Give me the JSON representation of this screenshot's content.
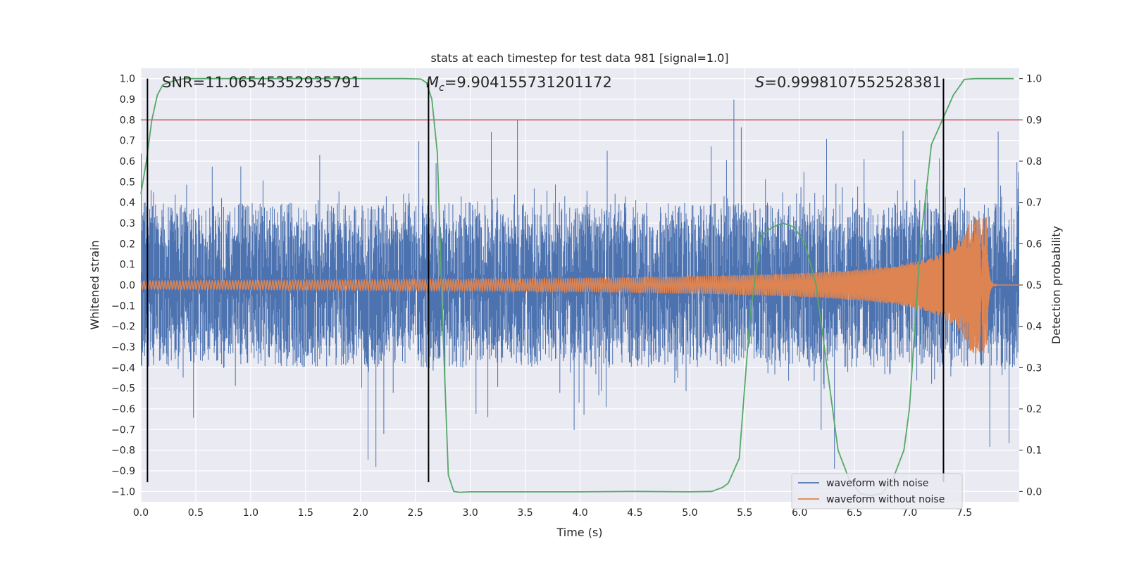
{
  "chart_data": {
    "type": "line",
    "title": "stats at each timestep for test data 981 [signal=1.0]",
    "xlabel": "Time (s)",
    "ylabel_left": "Whitened strain",
    "ylabel_right": "Detection probability",
    "xlim": [
      0,
      8
    ],
    "ylim_left": [
      -1.05,
      1.05
    ],
    "ylim_right": [
      -0.025,
      1.025
    ],
    "x_ticks": [
      "0.0",
      "0.5",
      "1.0",
      "1.5",
      "2.0",
      "2.5",
      "3.0",
      "3.5",
      "4.0",
      "4.5",
      "5.0",
      "5.5",
      "6.0",
      "6.5",
      "7.0",
      "7.5"
    ],
    "y_ticks_left": [
      "1.0",
      "0.9",
      "0.8",
      "0.7",
      "0.6",
      "0.5",
      "0.4",
      "0.3",
      "0.2",
      "0.1",
      "0.0",
      "−0.1",
      "−0.2",
      "−0.3",
      "−0.4",
      "−0.5",
      "−0.6",
      "−0.7",
      "−0.8",
      "−0.9",
      "−1.0"
    ],
    "y_ticks_right": [
      "1.0",
      "0.9",
      "0.8",
      "0.7",
      "0.6",
      "0.5",
      "0.4",
      "0.3",
      "0.2",
      "0.1",
      "0.0"
    ],
    "annotations": {
      "snr": "SNR=11.06545352935791",
      "mc_symbol": "M",
      "mc_sub": "c",
      "mc_value": "=9.904155731201172",
      "s_symbol": "S",
      "s_value": "=0.9998107552528381"
    },
    "threshold": 0.9,
    "vlines_x": [
      0.06,
      2.62,
      7.31
    ],
    "noise_envelope": {
      "typical_peak": 0.5,
      "max_peak": 0.94,
      "min_peak": -0.96
    },
    "chirp": {
      "start_amplitude": 0.02,
      "peak_amplitude": 0.33,
      "merger_time": 7.7,
      "end_time": 7.8
    },
    "probability": {
      "t": [
        0.0,
        0.05,
        0.1,
        0.15,
        0.2,
        0.3,
        0.4,
        0.6,
        1.0,
        1.5,
        2.0,
        2.4,
        2.55,
        2.6,
        2.65,
        2.7,
        2.75,
        2.8,
        2.85,
        2.9,
        3.0,
        3.5,
        4.0,
        4.5,
        5.0,
        5.2,
        5.3,
        5.35,
        5.45,
        5.55,
        5.65,
        5.75,
        5.85,
        5.95,
        6.05,
        6.15,
        6.25,
        6.35,
        6.45,
        6.55,
        6.65,
        6.75,
        6.85,
        6.95,
        7.0,
        7.05,
        7.1,
        7.2,
        7.3,
        7.4,
        7.5,
        7.6,
        7.8,
        7.95
      ],
      "p": [
        0.72,
        0.8,
        0.9,
        0.96,
        0.985,
        0.995,
        1.0,
        1.0,
        1.0,
        1.0,
        1.0,
        1.0,
        0.999,
        0.99,
        0.95,
        0.82,
        0.4,
        0.04,
        0.0,
        -0.002,
        -0.001,
        -0.001,
        -0.001,
        0.0,
        -0.001,
        0.0,
        0.01,
        0.02,
        0.08,
        0.43,
        0.62,
        0.64,
        0.65,
        0.64,
        0.6,
        0.5,
        0.3,
        0.1,
        0.03,
        -0.005,
        -0.01,
        -0.005,
        0.03,
        0.1,
        0.2,
        0.4,
        0.6,
        0.84,
        0.9,
        0.96,
        0.998,
        1.0,
        1.0,
        1.0
      ]
    },
    "legend": {
      "position": "lower right",
      "entries": [
        {
          "label": "waveform with noise",
          "color": "#4c72b0"
        },
        {
          "label": "waveform without noise",
          "color": "#dd8452"
        }
      ]
    },
    "colors": {
      "noise": "#4c72b0",
      "clean": "#dd8452",
      "probability": "#55a868",
      "threshold": "#c44e52",
      "vline": "#000000",
      "background": "#eaeaf2",
      "grid": "#ffffff"
    }
  }
}
